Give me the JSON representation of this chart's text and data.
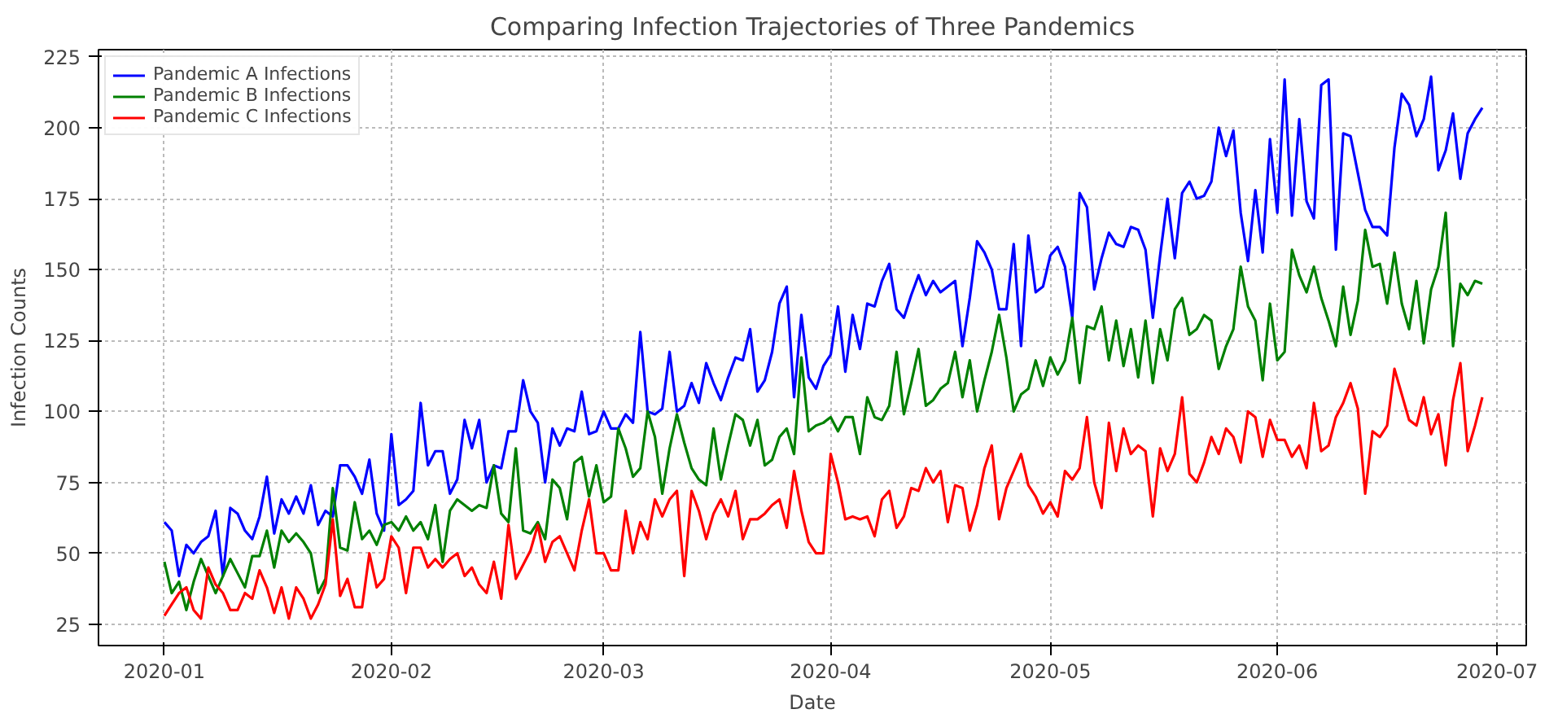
{
  "chart_data": {
    "type": "line",
    "title": "Comparing Infection Trajectories of Three Pandemics",
    "xlabel": "Date",
    "ylabel": "Infection Counts",
    "x": [
      "2020-01-01",
      "2020-01-02",
      "2020-01-03",
      "2020-01-04",
      "2020-01-05",
      "2020-01-06",
      "2020-01-07",
      "2020-01-08",
      "2020-01-09",
      "2020-01-10",
      "2020-01-11",
      "2020-01-12",
      "2020-01-13",
      "2020-01-14",
      "2020-01-15",
      "2020-01-16",
      "2020-01-17",
      "2020-01-18",
      "2020-01-19",
      "2020-01-20",
      "2020-01-21",
      "2020-01-22",
      "2020-01-23",
      "2020-01-24",
      "2020-01-25",
      "2020-01-26",
      "2020-01-27",
      "2020-01-28",
      "2020-01-29",
      "2020-01-30",
      "2020-01-31",
      "2020-02-01",
      "2020-02-02",
      "2020-02-03",
      "2020-02-04",
      "2020-02-05",
      "2020-02-06",
      "2020-02-07",
      "2020-02-08",
      "2020-02-09",
      "2020-02-10",
      "2020-02-11",
      "2020-02-12",
      "2020-02-13",
      "2020-02-14",
      "2020-02-15",
      "2020-02-16",
      "2020-02-17",
      "2020-02-18",
      "2020-02-19",
      "2020-02-20",
      "2020-02-21",
      "2020-02-22",
      "2020-02-23",
      "2020-02-24",
      "2020-02-25",
      "2020-02-26",
      "2020-02-27",
      "2020-02-28",
      "2020-02-29",
      "2020-03-01",
      "2020-03-02",
      "2020-03-03",
      "2020-03-04",
      "2020-03-05",
      "2020-03-06",
      "2020-03-07",
      "2020-03-08",
      "2020-03-09",
      "2020-03-10",
      "2020-03-11",
      "2020-03-12",
      "2020-03-13",
      "2020-03-14",
      "2020-03-15",
      "2020-03-16",
      "2020-03-17",
      "2020-03-18",
      "2020-03-19",
      "2020-03-20",
      "2020-03-21",
      "2020-03-22",
      "2020-03-23",
      "2020-03-24",
      "2020-03-25",
      "2020-03-26",
      "2020-03-27",
      "2020-03-28",
      "2020-03-29",
      "2020-03-30",
      "2020-03-31",
      "2020-04-01",
      "2020-04-02",
      "2020-04-03",
      "2020-04-04",
      "2020-04-05",
      "2020-04-06",
      "2020-04-07",
      "2020-04-08",
      "2020-04-09",
      "2020-04-10",
      "2020-04-11",
      "2020-04-12",
      "2020-04-13",
      "2020-04-14",
      "2020-04-15",
      "2020-04-16",
      "2020-04-17",
      "2020-04-18",
      "2020-04-19",
      "2020-04-20",
      "2020-04-21",
      "2020-04-22",
      "2020-04-23",
      "2020-04-24",
      "2020-04-25",
      "2020-04-26",
      "2020-04-27",
      "2020-04-28",
      "2020-04-29",
      "2020-04-30",
      "2020-05-01",
      "2020-05-02",
      "2020-05-03",
      "2020-05-04",
      "2020-05-05",
      "2020-05-06",
      "2020-05-07",
      "2020-05-08",
      "2020-05-09",
      "2020-05-10",
      "2020-05-11",
      "2020-05-12",
      "2020-05-13",
      "2020-05-14",
      "2020-05-15",
      "2020-05-16",
      "2020-05-17",
      "2020-05-18",
      "2020-05-19",
      "2020-05-20",
      "2020-05-21",
      "2020-05-22",
      "2020-05-23",
      "2020-05-24",
      "2020-05-25",
      "2020-05-26",
      "2020-05-27",
      "2020-05-28",
      "2020-05-29",
      "2020-05-30",
      "2020-05-31",
      "2020-06-01",
      "2020-06-02",
      "2020-06-03",
      "2020-06-04",
      "2020-06-05",
      "2020-06-06",
      "2020-06-07",
      "2020-06-08",
      "2020-06-09",
      "2020-06-10",
      "2020-06-11",
      "2020-06-12",
      "2020-06-13",
      "2020-06-14",
      "2020-06-15",
      "2020-06-16",
      "2020-06-17",
      "2020-06-18",
      "2020-06-19",
      "2020-06-20",
      "2020-06-21",
      "2020-06-22",
      "2020-06-23",
      "2020-06-24",
      "2020-06-25",
      "2020-06-26",
      "2020-06-27",
      "2020-06-28",
      "2020-06-29"
    ],
    "series": [
      {
        "name": "Pandemic A Infections",
        "color": "#0000ff",
        "values": [
          61,
          58,
          42,
          53,
          50,
          54,
          56,
          65,
          42,
          66,
          64,
          58,
          55,
          63,
          77,
          57,
          69,
          64,
          70,
          64,
          74,
          60,
          65,
          63,
          81,
          81,
          77,
          71,
          83,
          64,
          58,
          92,
          67,
          69,
          72,
          103,
          81,
          86,
          86,
          71,
          76,
          97,
          87,
          97,
          75,
          81,
          80,
          93,
          93,
          111,
          100,
          96,
          75,
          94,
          88,
          94,
          93,
          107,
          92,
          93,
          100,
          94,
          94,
          99,
          96,
          128,
          100,
          99,
          101,
          121,
          100,
          102,
          110,
          103,
          117,
          110,
          104,
          112,
          119,
          118,
          129,
          107,
          111,
          121,
          138,
          144,
          105,
          134,
          112,
          108,
          116,
          120,
          137,
          114,
          134,
          122,
          138,
          137,
          146,
          152,
          136,
          133,
          141,
          148,
          141,
          146,
          142,
          144,
          146,
          123,
          140,
          160,
          156,
          150,
          136,
          136,
          159,
          123,
          162,
          142,
          144,
          155,
          158,
          151,
          133,
          177,
          172,
          143,
          154,
          163,
          159,
          158,
          165,
          164,
          157,
          133,
          155,
          175,
          154,
          177,
          181,
          175,
          176,
          181,
          200,
          190,
          199,
          170,
          153,
          178,
          156,
          196,
          170,
          217,
          169,
          203,
          174,
          168,
          215,
          217,
          157,
          198,
          197,
          184,
          171,
          165,
          165,
          162,
          193,
          212,
          208,
          197,
          203,
          218,
          185,
          192,
          205,
          182,
          198,
          203,
          207
        ]
      },
      {
        "name": "Pandemic B Infections",
        "color": "#008000",
        "values": [
          47,
          36,
          40,
          30,
          40,
          48,
          42,
          36,
          42,
          48,
          43,
          38,
          49,
          49,
          58,
          45,
          58,
          54,
          57,
          54,
          50,
          36,
          41,
          73,
          52,
          51,
          68,
          55,
          58,
          53,
          60,
          61,
          58,
          63,
          58,
          61,
          55,
          67,
          47,
          65,
          69,
          67,
          65,
          67,
          66,
          81,
          64,
          61,
          87,
          58,
          57,
          61,
          55,
          76,
          73,
          62,
          82,
          84,
          70,
          81,
          68,
          70,
          94,
          87,
          77,
          80,
          100,
          91,
          71,
          87,
          99,
          89,
          80,
          76,
          74,
          94,
          76,
          88,
          99,
          97,
          88,
          97,
          81,
          83,
          91,
          94,
          85,
          119,
          93,
          95,
          96,
          98,
          93,
          98,
          98,
          85,
          105,
          98,
          97,
          102,
          121,
          99,
          110,
          122,
          102,
          104,
          108,
          110,
          121,
          105,
          118,
          100,
          111,
          121,
          134,
          119,
          100,
          106,
          108,
          118,
          109,
          119,
          113,
          118,
          133,
          110,
          130,
          129,
          137,
          118,
          132,
          116,
          129,
          112,
          132,
          110,
          129,
          118,
          136,
          140,
          127,
          129,
          134,
          132,
          115,
          123,
          129,
          151,
          137,
          132,
          111,
          138,
          118,
          121,
          157,
          148,
          142,
          151,
          140,
          132,
          123,
          144,
          127,
          139,
          164,
          151,
          152,
          138,
          156,
          138,
          129,
          146,
          124,
          143,
          151,
          170,
          123,
          145,
          141,
          146,
          145
        ]
      },
      {
        "name": "Pandemic C Infections",
        "color": "#ff0000",
        "values": [
          28,
          32,
          36,
          38,
          30,
          27,
          45,
          39,
          36,
          30,
          30,
          36,
          34,
          44,
          38,
          29,
          38,
          27,
          38,
          34,
          27,
          32,
          39,
          62,
          35,
          41,
          31,
          31,
          50,
          38,
          41,
          56,
          52,
          36,
          52,
          52,
          45,
          48,
          45,
          48,
          50,
          42,
          45,
          39,
          36,
          47,
          34,
          60,
          41,
          46,
          51,
          60,
          47,
          54,
          56,
          50,
          44,
          58,
          69,
          50,
          50,
          44,
          44,
          65,
          50,
          61,
          55,
          69,
          63,
          69,
          72,
          42,
          72,
          65,
          55,
          64,
          69,
          63,
          72,
          55,
          62,
          62,
          64,
          67,
          69,
          59,
          79,
          65,
          54,
          50,
          50,
          85,
          75,
          62,
          63,
          62,
          63,
          56,
          69,
          72,
          59,
          63,
          73,
          72,
          80,
          75,
          79,
          61,
          74,
          73,
          58,
          67,
          80,
          88,
          62,
          73,
          79,
          85,
          74,
          70,
          64,
          68,
          63,
          79,
          76,
          80,
          98,
          75,
          66,
          96,
          79,
          94,
          85,
          88,
          86,
          63,
          87,
          79,
          85,
          105,
          78,
          75,
          82,
          91,
          85,
          94,
          91,
          82,
          100,
          98,
          84,
          97,
          90,
          90,
          84,
          88,
          80,
          103,
          86,
          88,
          98,
          103,
          110,
          101,
          71,
          93,
          91,
          95,
          115,
          106,
          97,
          95,
          105,
          92,
          99,
          81,
          104,
          117,
          86,
          95,
          105
        ]
      }
    ],
    "xlim": [
      "2019-12-23",
      "2020-07-05"
    ],
    "xticks": [
      {
        "value": "2020-01-01",
        "label": "2020-01"
      },
      {
        "value": "2020-02-01",
        "label": "2020-02"
      },
      {
        "value": "2020-03-01",
        "label": "2020-03"
      },
      {
        "value": "2020-04-01",
        "label": "2020-04"
      },
      {
        "value": "2020-05-01",
        "label": "2020-05"
      },
      {
        "value": "2020-06-01",
        "label": "2020-06"
      },
      {
        "value": "2020-07-01",
        "label": "2020-07"
      }
    ],
    "ylim": [
      17.5,
      227.5
    ],
    "yticks": [
      25,
      50,
      75,
      100,
      125,
      150,
      175,
      200,
      225
    ],
    "grid": true,
    "legend": "top left"
  }
}
